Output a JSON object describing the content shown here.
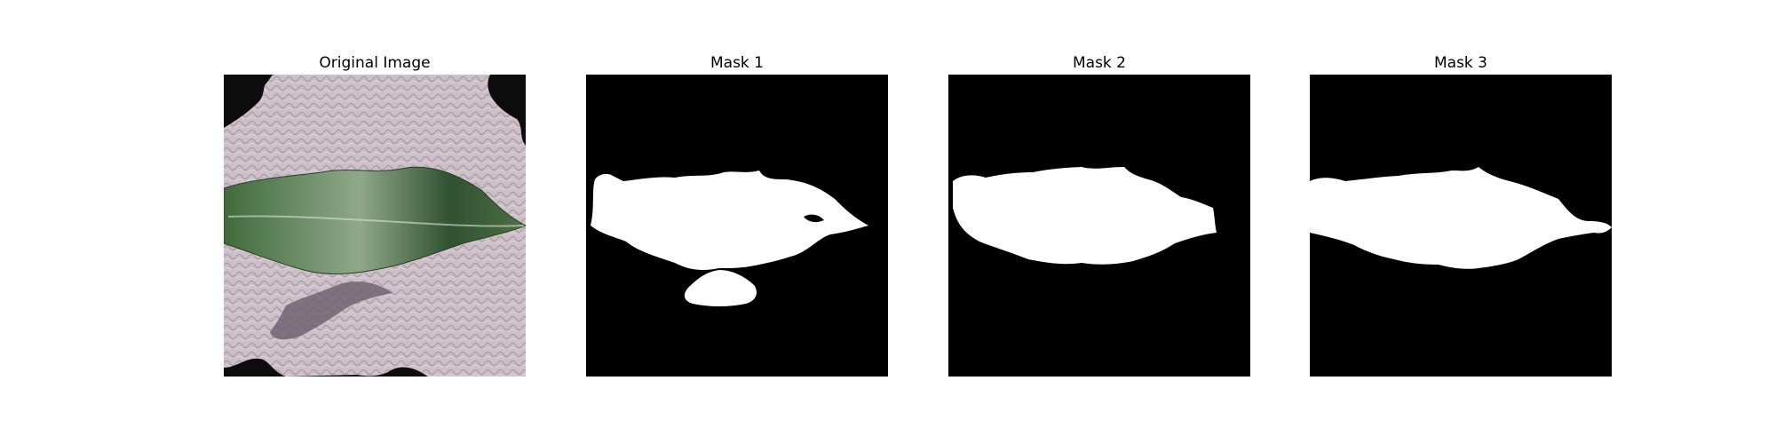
{
  "panels": [
    {
      "title": "Original Image"
    },
    {
      "title": "Mask 1"
    },
    {
      "title": "Mask 2"
    },
    {
      "title": "Mask 3"
    }
  ],
  "colors": {
    "background": "#ffffff",
    "mask_background": "#000000",
    "mask_foreground": "#ffffff",
    "fabric": "#cdbfc8",
    "leaf": "#4e7a45",
    "shadow": "#6e6470",
    "photo_background": "#0d0c0d"
  }
}
